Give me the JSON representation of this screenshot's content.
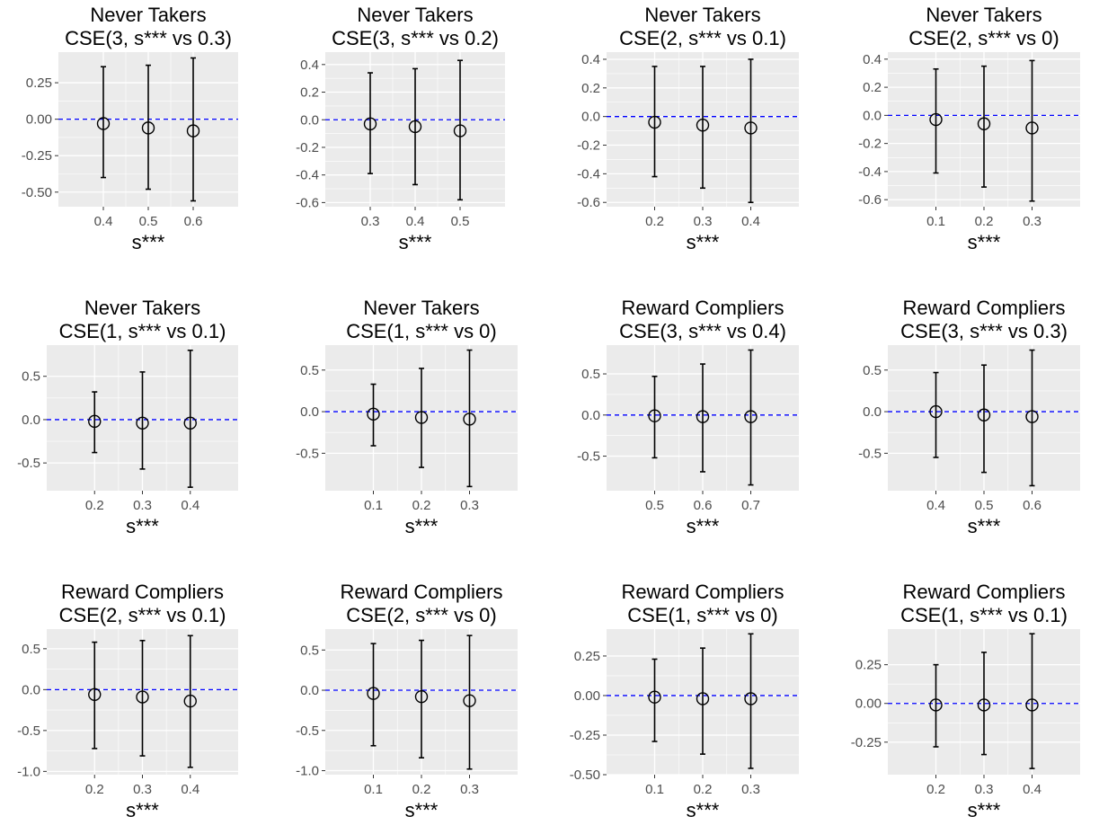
{
  "chart_data": [
    {
      "type": "scatter",
      "group": "Never Takers",
      "title": "CSE(3, s*** vs 0.3)",
      "xlabel": "s***",
      "categories": [
        "0.4",
        "0.5",
        "0.6"
      ],
      "yticks": [
        "0.25",
        "0.00",
        "-0.25",
        "-0.50"
      ],
      "ytick_values": [
        0.25,
        0.0,
        -0.25,
        -0.5
      ],
      "ylim": [
        -0.6,
        0.46
      ],
      "reference_line": 0,
      "estimates": [
        -0.03,
        -0.06,
        -0.08
      ],
      "lower": [
        -0.4,
        -0.48,
        -0.56
      ],
      "upper": [
        0.36,
        0.37,
        0.42
      ]
    },
    {
      "type": "scatter",
      "group": "Never Takers",
      "title": "CSE(3, s*** vs 0.2)",
      "xlabel": "s***",
      "categories": [
        "0.3",
        "0.4",
        "0.5"
      ],
      "yticks": [
        "0.4",
        "0.2",
        "0.0",
        "-0.2",
        "-0.4",
        "-0.6"
      ],
      "ytick_values": [
        0.4,
        0.2,
        0.0,
        -0.2,
        -0.4,
        -0.6
      ],
      "ylim": [
        -0.63,
        0.49
      ],
      "reference_line": 0,
      "estimates": [
        -0.03,
        -0.05,
        -0.08
      ],
      "lower": [
        -0.39,
        -0.47,
        -0.58
      ],
      "upper": [
        0.34,
        0.37,
        0.43
      ]
    },
    {
      "type": "scatter",
      "group": "Never Takers",
      "title": "CSE(2, s*** vs 0.1)",
      "xlabel": "s***",
      "categories": [
        "0.2",
        "0.3",
        "0.4"
      ],
      "yticks": [
        "0.4",
        "0.2",
        "0.0",
        "-0.2",
        "-0.4",
        "-0.6"
      ],
      "ytick_values": [
        0.4,
        0.2,
        0.0,
        -0.2,
        -0.4,
        -0.6
      ],
      "ylim": [
        -0.63,
        0.45
      ],
      "reference_line": 0,
      "estimates": [
        -0.04,
        -0.06,
        -0.08
      ],
      "lower": [
        -0.42,
        -0.5,
        -0.6
      ],
      "upper": [
        0.35,
        0.35,
        0.4
      ]
    },
    {
      "type": "scatter",
      "group": "Never Takers",
      "title": "CSE(2, s*** vs 0)",
      "xlabel": "s***",
      "categories": [
        "0.1",
        "0.2",
        "0.3"
      ],
      "yticks": [
        "0.4",
        "0.2",
        "0.0",
        "-0.2",
        "-0.4",
        "-0.6"
      ],
      "ytick_values": [
        0.4,
        0.2,
        0.0,
        -0.2,
        -0.4,
        -0.6
      ],
      "ylim": [
        -0.65,
        0.45
      ],
      "reference_line": 0,
      "estimates": [
        -0.03,
        -0.06,
        -0.09
      ],
      "lower": [
        -0.41,
        -0.51,
        -0.61
      ],
      "upper": [
        0.33,
        0.35,
        0.39
      ]
    },
    {
      "type": "scatter",
      "group": "Never Takers",
      "title": "CSE(1, s*** vs 0.1)",
      "xlabel": "s***",
      "categories": [
        "0.2",
        "0.3",
        "0.4"
      ],
      "yticks": [
        "0.5",
        "0.0",
        "-0.5"
      ],
      "ytick_values": [
        0.5,
        0.0,
        -0.5
      ],
      "ylim": [
        -0.82,
        0.86
      ],
      "reference_line": 0,
      "estimates": [
        -0.02,
        -0.04,
        -0.04
      ],
      "lower": [
        -0.38,
        -0.57,
        -0.78
      ],
      "upper": [
        0.32,
        0.55,
        0.8
      ]
    },
    {
      "type": "scatter",
      "group": "Never Takers",
      "title": "CSE(1, s*** vs 0)",
      "xlabel": "s***",
      "categories": [
        "0.1",
        "0.2",
        "0.3"
      ],
      "yticks": [
        "0.5",
        "0.0",
        "-0.5"
      ],
      "ytick_values": [
        0.5,
        0.0,
        -0.5
      ],
      "ylim": [
        -0.95,
        0.8
      ],
      "reference_line": 0,
      "estimates": [
        -0.03,
        -0.07,
        -0.09
      ],
      "lower": [
        -0.41,
        -0.67,
        -0.9
      ],
      "upper": [
        0.33,
        0.52,
        0.74
      ]
    },
    {
      "type": "scatter",
      "group": "Reward Compliers",
      "title": "CSE(3, s*** vs 0.4)",
      "xlabel": "s***",
      "categories": [
        "0.5",
        "0.6",
        "0.7"
      ],
      "yticks": [
        "0.5",
        "0.0",
        "-0.5"
      ],
      "ytick_values": [
        0.5,
        0.0,
        -0.5
      ],
      "ylim": [
        -0.92,
        0.85
      ],
      "reference_line": 0,
      "estimates": [
        -0.01,
        -0.02,
        -0.02
      ],
      "lower": [
        -0.52,
        -0.69,
        -0.85
      ],
      "upper": [
        0.47,
        0.62,
        0.79
      ]
    },
    {
      "type": "scatter",
      "group": "Reward Compliers",
      "title": "CSE(3, s*** vs 0.3)",
      "xlabel": "s***",
      "categories": [
        "0.4",
        "0.5",
        "0.6"
      ],
      "yticks": [
        "0.5",
        "0.0",
        "-0.5"
      ],
      "ytick_values": [
        0.5,
        0.0,
        -0.5
      ],
      "ylim": [
        -0.95,
        0.8
      ],
      "reference_line": 0,
      "estimates": [
        0.0,
        -0.04,
        -0.06
      ],
      "lower": [
        -0.55,
        -0.73,
        -0.89
      ],
      "upper": [
        0.47,
        0.56,
        0.74
      ]
    },
    {
      "type": "scatter",
      "group": "Reward Compliers",
      "title": "CSE(2, s*** vs 0.1)",
      "xlabel": "s***",
      "categories": [
        "0.2",
        "0.3",
        "0.4"
      ],
      "yticks": [
        "0.5",
        "0.0",
        "-0.5",
        "-1.0"
      ],
      "ytick_values": [
        0.5,
        0.0,
        -0.5,
        -1.0
      ],
      "ylim": [
        -1.04,
        0.74
      ],
      "reference_line": 0,
      "estimates": [
        -0.06,
        -0.09,
        -0.14
      ],
      "lower": [
        -0.72,
        -0.81,
        -0.95
      ],
      "upper": [
        0.58,
        0.6,
        0.66
      ]
    },
    {
      "type": "scatter",
      "group": "Reward Compliers",
      "title": "CSE(2, s*** vs 0)",
      "xlabel": "s***",
      "categories": [
        "0.1",
        "0.2",
        "0.3"
      ],
      "yticks": [
        "0.5",
        "0.0",
        "-0.5",
        "-1.0"
      ],
      "ytick_values": [
        0.5,
        0.0,
        -0.5,
        -1.0
      ],
      "ylim": [
        -1.05,
        0.76
      ],
      "reference_line": 0,
      "estimates": [
        -0.04,
        -0.08,
        -0.13
      ],
      "lower": [
        -0.69,
        -0.84,
        -0.98
      ],
      "upper": [
        0.58,
        0.62,
        0.68
      ]
    },
    {
      "type": "scatter",
      "group": "Reward Compliers",
      "title": "CSE(1, s*** vs 0)",
      "xlabel": "s***",
      "categories": [
        "0.1",
        "0.2",
        "0.3"
      ],
      "yticks": [
        "0.25",
        "0.00",
        "-0.25",
        "-0.50"
      ],
      "ytick_values": [
        0.25,
        0.0,
        -0.25,
        -0.5
      ],
      "ylim": [
        -0.5,
        0.42
      ],
      "reference_line": 0,
      "estimates": [
        -0.01,
        -0.02,
        -0.02
      ],
      "lower": [
        -0.29,
        -0.37,
        -0.46
      ],
      "upper": [
        0.23,
        0.3,
        0.39
      ]
    },
    {
      "type": "scatter",
      "group": "Reward Compliers",
      "title": "CSE(1, s*** vs 0.1)",
      "xlabel": "s***",
      "categories": [
        "0.2",
        "0.3",
        "0.4"
      ],
      "yticks": [
        "0.25",
        "0.00",
        "-0.25"
      ],
      "ytick_values": [
        0.25,
        0.0,
        -0.25
      ],
      "ylim": [
        -0.46,
        0.48
      ],
      "reference_line": 0,
      "estimates": [
        -0.01,
        -0.01,
        -0.01
      ],
      "lower": [
        -0.28,
        -0.33,
        -0.42
      ],
      "upper": [
        0.25,
        0.33,
        0.45
      ]
    }
  ],
  "colors": {
    "panel_background": "#ebebeb",
    "grid": "#ffffff",
    "reference_line": "#0000ff",
    "marks": "#000000",
    "tick_label": "#4d4d4d"
  }
}
